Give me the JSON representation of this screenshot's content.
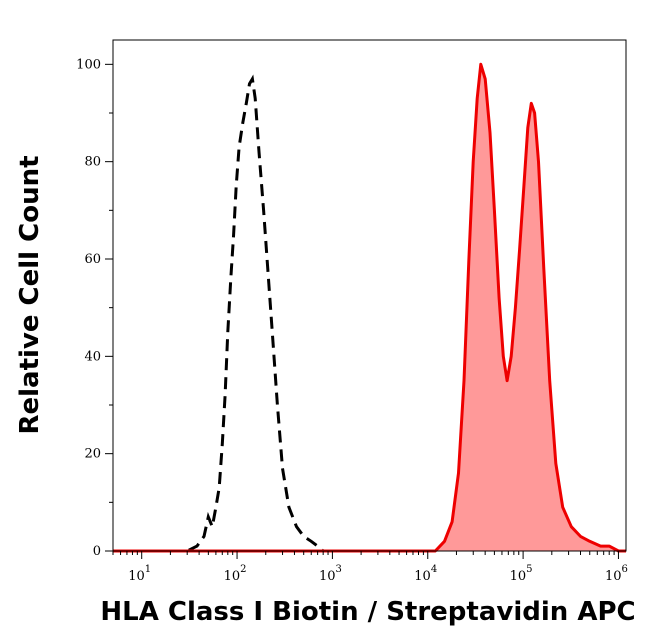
{
  "chart_data": {
    "type": "area",
    "xlabel": "HLA Class I Biotin / Streptavidin APC",
    "ylabel": "Relative Cell Count",
    "x_scale": "log",
    "xlim": [
      5,
      1200000
    ],
    "ylim": [
      0,
      105
    ],
    "x_ticks": [
      {
        "base": "10",
        "exp": "1",
        "value": 10
      },
      {
        "base": "10",
        "exp": "2",
        "value": 100
      },
      {
        "base": "10",
        "exp": "3",
        "value": 1000
      },
      {
        "base": "10",
        "exp": "4",
        "value": 10000
      },
      {
        "base": "10",
        "exp": "5",
        "value": 100000
      },
      {
        "base": "10",
        "exp": "6",
        "value": 1000000
      }
    ],
    "y_ticks": [
      "0",
      "20",
      "40",
      "60",
      "80",
      "100"
    ],
    "grid": false,
    "legend": "none",
    "series": [
      {
        "style": "dashed-outline",
        "color": "#000000",
        "points": [
          [
            5,
            0
          ],
          [
            30,
            0
          ],
          [
            38,
            1
          ],
          [
            45,
            3
          ],
          [
            50,
            7
          ],
          [
            55,
            5
          ],
          [
            60,
            9
          ],
          [
            65,
            13
          ],
          [
            70,
            22
          ],
          [
            75,
            32
          ],
          [
            80,
            45
          ],
          [
            86,
            56
          ],
          [
            92,
            65
          ],
          [
            98,
            75
          ],
          [
            105,
            83
          ],
          [
            115,
            88
          ],
          [
            125,
            92
          ],
          [
            135,
            96
          ],
          [
            145,
            97
          ],
          [
            155,
            93
          ],
          [
            170,
            82
          ],
          [
            190,
            70
          ],
          [
            215,
            55
          ],
          [
            240,
            42
          ],
          [
            265,
            30
          ],
          [
            300,
            17
          ],
          [
            350,
            9
          ],
          [
            420,
            5
          ],
          [
            500,
            3
          ],
          [
            600,
            2
          ],
          [
            700,
            1
          ],
          [
            800,
            0
          ]
        ]
      },
      {
        "style": "filled",
        "color": "#ee0000",
        "fill": "#ff9999",
        "points": [
          [
            5,
            0
          ],
          [
            12000,
            0
          ],
          [
            15000,
            2
          ],
          [
            18000,
            6
          ],
          [
            21000,
            16
          ],
          [
            24000,
            35
          ],
          [
            27000,
            60
          ],
          [
            30000,
            80
          ],
          [
            33000,
            93
          ],
          [
            36000,
            100
          ],
          [
            40000,
            97
          ],
          [
            45000,
            86
          ],
          [
            50000,
            70
          ],
          [
            56000,
            52
          ],
          [
            62000,
            40
          ],
          [
            68000,
            35
          ],
          [
            75000,
            40
          ],
          [
            83000,
            50
          ],
          [
            92000,
            62
          ],
          [
            102000,
            75
          ],
          [
            112000,
            87
          ],
          [
            122000,
            92
          ],
          [
            132000,
            90
          ],
          [
            145000,
            80
          ],
          [
            165000,
            58
          ],
          [
            190000,
            35
          ],
          [
            220000,
            18
          ],
          [
            260000,
            9
          ],
          [
            320000,
            5
          ],
          [
            400000,
            3
          ],
          [
            500000,
            2
          ],
          [
            650000,
            1
          ],
          [
            800000,
            1
          ],
          [
            1000000,
            0
          ],
          [
            1200000,
            0
          ]
        ]
      }
    ]
  }
}
